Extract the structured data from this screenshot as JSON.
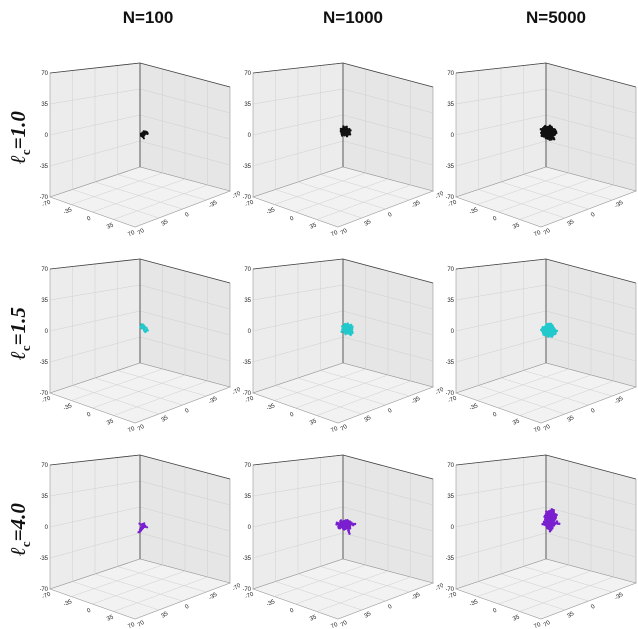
{
  "columns": [
    {
      "label": "N=100",
      "n": 100
    },
    {
      "label": "N=1000",
      "n": 1000
    },
    {
      "label": "N=5000",
      "n": 5000
    }
  ],
  "rows": [
    {
      "ell_sub": "c",
      "value_text": "=1.0",
      "color": "#111111"
    },
    {
      "ell_sub": "c",
      "value_text": "=1.5",
      "color": "#22c8cc"
    },
    {
      "ell_sub": "c",
      "value_text": "=4.0",
      "color": "#7a1fd0"
    }
  ],
  "axis_ticks": {
    "vertical": [
      "70",
      "35",
      "0",
      "-35",
      "-70"
    ],
    "front": [
      "-70",
      "-35",
      "0",
      "35",
      "70"
    ],
    "side": [
      "70",
      "35",
      "0",
      "-35",
      "-70"
    ]
  }
}
